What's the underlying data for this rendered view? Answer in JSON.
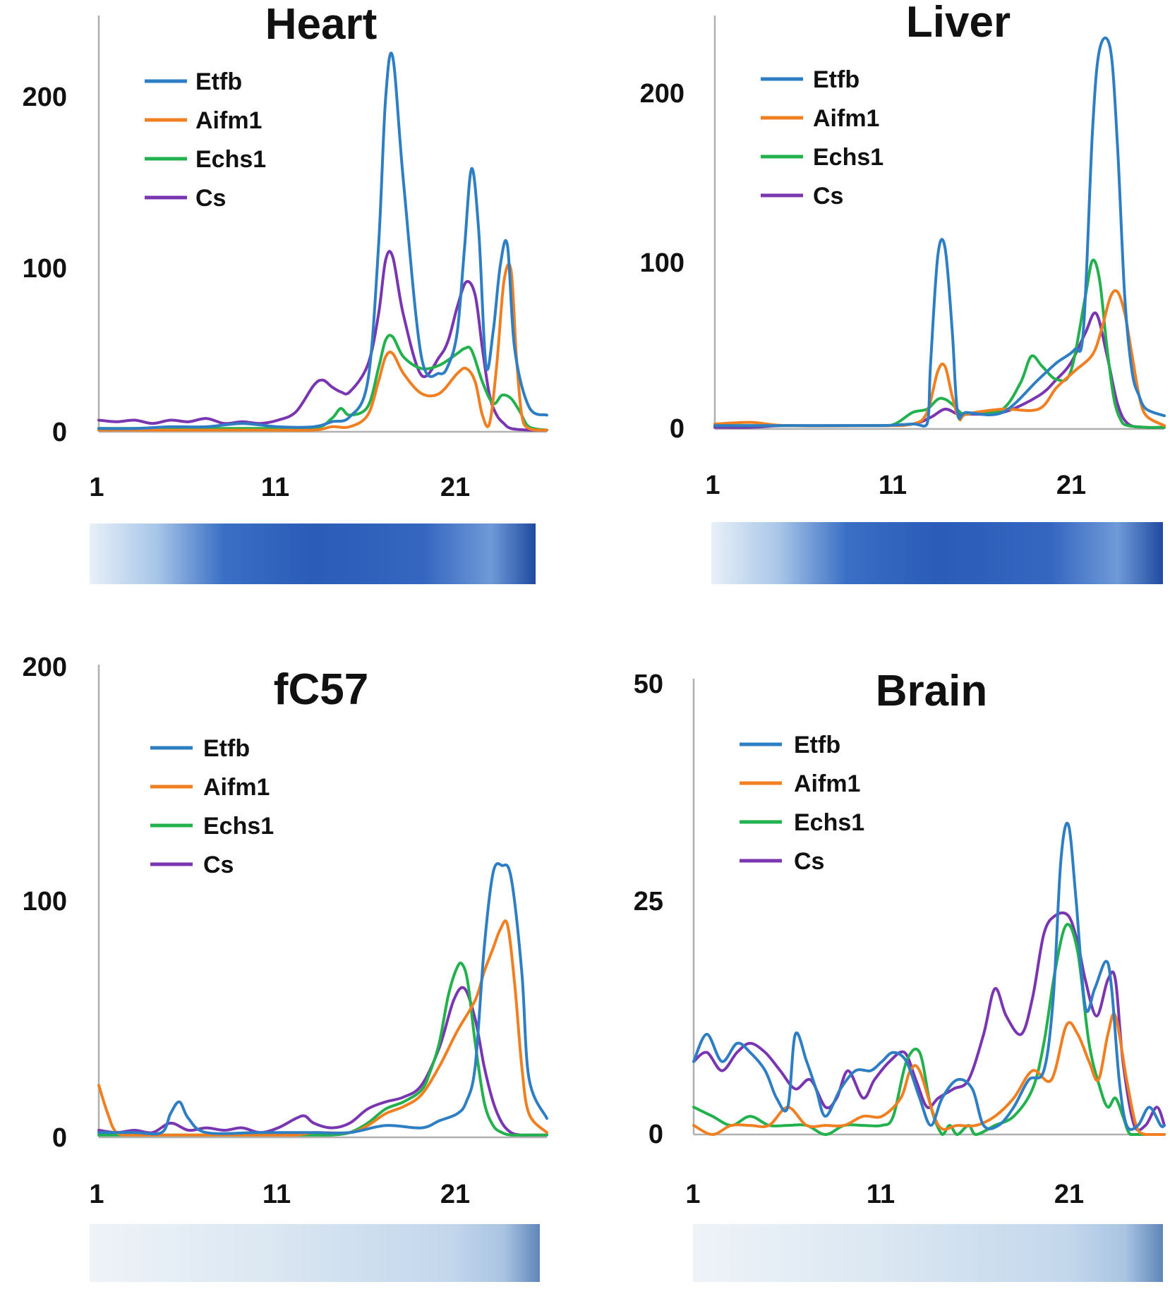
{
  "colors": {
    "Etfb": "#2e7ec4",
    "Aifm1": "#f07f22",
    "Echs1": "#22b14c",
    "Cs": "#7a35b0"
  },
  "chart_data": [
    {
      "type": "line",
      "title": "Heart",
      "ylim": [
        0,
        250
      ],
      "yticks": [
        "0",
        "100",
        "200"
      ],
      "xlim": [
        1,
        26
      ],
      "xticks": [
        "1",
        "11",
        "21"
      ],
      "legend_position": "top-left",
      "gel_intensity": "dark",
      "series": [
        {
          "name": "Etfb",
          "x": [
            1,
            3,
            5,
            7,
            9,
            11,
            13,
            14,
            15,
            16,
            16.6,
            17,
            17.4,
            18,
            19,
            20,
            20.5,
            21,
            21.4,
            21.8,
            22.2,
            22.6,
            23,
            23.4,
            23.8,
            24.2,
            25,
            26
          ],
          "y": [
            2,
            2,
            3,
            3,
            5,
            3,
            3,
            6,
            9,
            30,
            110,
            200,
            225,
            150,
            45,
            35,
            40,
            60,
            110,
            158,
            120,
            40,
            60,
            100,
            112,
            50,
            15,
            10
          ]
        },
        {
          "name": "Aifm1",
          "x": [
            1,
            5,
            10,
            13,
            14,
            15,
            16,
            16.6,
            17,
            17.4,
            18,
            19,
            20,
            21,
            21.5,
            22,
            22.4,
            22.8,
            23.2,
            23.6,
            24,
            24.3,
            24.6,
            25,
            26
          ],
          "y": [
            1,
            1,
            1,
            1,
            3,
            3,
            10,
            30,
            45,
            47,
            35,
            23,
            23,
            35,
            38,
            30,
            10,
            5,
            40,
            90,
            97,
            45,
            10,
            2,
            1
          ]
        },
        {
          "name": "Echs1",
          "x": [
            1,
            5,
            10,
            13,
            14,
            14.5,
            15,
            16,
            16.6,
            17,
            17.4,
            18,
            19,
            20,
            21,
            21.4,
            21.8,
            22.4,
            23,
            23.5,
            24,
            24.5,
            25,
            26
          ],
          "y": [
            2,
            2,
            2,
            2,
            8,
            14,
            10,
            15,
            38,
            55,
            57,
            45,
            38,
            40,
            47,
            50,
            49,
            30,
            17,
            22,
            20,
            12,
            3,
            1
          ]
        },
        {
          "name": "Cs",
          "x": [
            1,
            2,
            3,
            4,
            5,
            6,
            7,
            8,
            9,
            10,
            11,
            12,
            13,
            13.5,
            14,
            14.5,
            15,
            16,
            16.6,
            17,
            17.4,
            18,
            19,
            20,
            20.5,
            21,
            21.5,
            22,
            22.4,
            22.8,
            23.2,
            23.6,
            24,
            25,
            26
          ],
          "y": [
            7,
            6,
            7,
            5,
            7,
            6,
            8,
            5,
            6,
            5,
            7,
            12,
            28,
            31,
            27,
            24,
            24,
            40,
            70,
            103,
            105,
            70,
            34,
            45,
            55,
            75,
            90,
            82,
            50,
            22,
            10,
            5,
            2,
            1,
            1
          ]
        }
      ]
    },
    {
      "type": "line",
      "title": "Liver",
      "ylim": [
        0,
        250
      ],
      "yticks": [
        "0",
        "100",
        "200"
      ],
      "xlim": [
        1,
        26
      ],
      "xticks": [
        "1",
        "11",
        "21"
      ],
      "legend_position": "top-left",
      "gel_intensity": "dark",
      "series": [
        {
          "name": "Etfb",
          "x": [
            1,
            5,
            10,
            12,
            12.8,
            13,
            13.4,
            13.8,
            14.2,
            14.5,
            15,
            17,
            19,
            20,
            21,
            21.5,
            22,
            22.4,
            23,
            23.4,
            23.8,
            24.2,
            24.6,
            25,
            26
          ],
          "y": [
            2,
            2,
            2,
            3,
            3,
            40,
            105,
            110,
            60,
            10,
            10,
            10,
            30,
            40,
            48,
            60,
            180,
            230,
            230,
            170,
            80,
            35,
            20,
            12,
            8
          ]
        },
        {
          "name": "Aifm1",
          "x": [
            1,
            3,
            5,
            10,
            12,
            12.8,
            13.4,
            13.8,
            14.2,
            14.6,
            15,
            17,
            19,
            20,
            21,
            22,
            22.5,
            23,
            23.4,
            23.8,
            24.2,
            24.6,
            25,
            26
          ],
          "y": [
            3,
            4,
            2,
            2,
            3,
            10,
            35,
            38,
            20,
            6,
            9,
            12,
            12,
            25,
            35,
            45,
            60,
            80,
            83,
            70,
            45,
            20,
            8,
            2
          ]
        },
        {
          "name": "Echs1",
          "x": [
            1,
            5,
            10,
            11,
            12,
            12.8,
            13.4,
            13.8,
            14.2,
            14.8,
            15.5,
            17,
            18,
            18.6,
            19.2,
            20,
            20.8,
            21.6,
            22,
            22.4,
            22.8,
            23.2,
            23.6,
            24,
            25,
            26
          ],
          "y": [
            2,
            2,
            2,
            3,
            10,
            12,
            18,
            18,
            15,
            9,
            10,
            12,
            28,
            44,
            38,
            30,
            35,
            80,
            102,
            90,
            50,
            18,
            5,
            2,
            1,
            1
          ]
        },
        {
          "name": "Cs",
          "x": [
            1,
            3,
            5,
            10,
            12,
            13,
            13.8,
            14.5,
            15,
            17,
            19,
            20,
            20.8,
            21.6,
            22.2,
            22.8,
            23.4,
            24,
            25,
            26
          ],
          "y": [
            1,
            1,
            2,
            2,
            3,
            7,
            12,
            9,
            9,
            10,
            20,
            30,
            40,
            58,
            70,
            45,
            15,
            3,
            1,
            1
          ]
        }
      ]
    },
    {
      "type": "line",
      "title": "fC57",
      "ylim": [
        0,
        200
      ],
      "yticks": [
        "0",
        "100",
        "200"
      ],
      "xlim": [
        1,
        26
      ],
      "xticks": [
        "1",
        "11",
        "21"
      ],
      "legend_position": "top-left",
      "gel_intensity": "light",
      "series": [
        {
          "name": "Etfb",
          "x": [
            1,
            3,
            4.5,
            5,
            5.5,
            6,
            7,
            10,
            13,
            15,
            17,
            19,
            20,
            21,
            21.5,
            22,
            22.5,
            23,
            23.5,
            24,
            24.6,
            25,
            26
          ],
          "y": [
            2,
            2,
            2,
            10,
            15,
            8,
            2,
            2,
            2,
            2,
            5,
            4,
            7,
            10,
            15,
            30,
            80,
            112,
            115,
            110,
            70,
            25,
            8
          ]
        },
        {
          "name": "Aifm1",
          "x": [
            1,
            1.5,
            2,
            3,
            5,
            10,
            12,
            13,
            15,
            16,
            17,
            18,
            19,
            20,
            21,
            22,
            22.5,
            23,
            23.4,
            23.8,
            24.2,
            24.6,
            25,
            26
          ],
          "y": [
            22,
            10,
            2,
            1,
            1,
            1,
            1,
            2,
            2,
            5,
            10,
            13,
            18,
            30,
            45,
            58,
            70,
            80,
            88,
            90,
            65,
            30,
            10,
            2
          ]
        },
        {
          "name": "Echs1",
          "x": [
            1,
            5,
            10,
            13,
            14,
            15,
            16,
            17,
            18,
            19,
            19.5,
            20,
            20.5,
            21,
            21.3,
            21.6,
            22,
            22.5,
            23,
            23.5,
            24,
            25,
            26
          ],
          "y": [
            1,
            1,
            1,
            1,
            1,
            2,
            6,
            12,
            15,
            20,
            28,
            40,
            60,
            72,
            73,
            65,
            40,
            15,
            5,
            2,
            1,
            1,
            1
          ]
        },
        {
          "name": "Cs",
          "x": [
            1,
            2,
            3,
            4,
            5,
            6,
            7,
            8,
            9,
            10,
            11,
            12,
            12.5,
            13,
            14,
            15,
            16,
            17,
            18,
            19,
            20,
            20.8,
            21.4,
            22,
            22.5,
            23,
            23.5,
            24,
            24.5,
            25,
            26
          ],
          "y": [
            3,
            2,
            3,
            2,
            6,
            3,
            4,
            3,
            4,
            2,
            4,
            8,
            9,
            6,
            4,
            6,
            12,
            15,
            17,
            22,
            38,
            58,
            63,
            50,
            30,
            15,
            6,
            2,
            1,
            1,
            1
          ]
        }
      ]
    },
    {
      "type": "line",
      "title": "Brain",
      "ylim": [
        0,
        50
      ],
      "yticks": [
        "0",
        "25",
        "50"
      ],
      "xlim": [
        1,
        26
      ],
      "xticks": [
        "1",
        "11",
        "21"
      ],
      "legend_position": "top-left",
      "gel_intensity": "light",
      "series": [
        {
          "name": "Etfb",
          "x": [
            1,
            1.7,
            2.5,
            3.3,
            4,
            4.8,
            5.4,
            6,
            6.4,
            7,
            7.5,
            8,
            8.8,
            9.6,
            10.4,
            11,
            11.6,
            12.3,
            13,
            13.6,
            14.2,
            15,
            15.8,
            16.4,
            17.2,
            18,
            18.8,
            19.6,
            20.1,
            20.5,
            20.9,
            21.3,
            21.8,
            22.3,
            22.9,
            23.2,
            23.6,
            24,
            24.6,
            25.2,
            25.8,
            26
          ],
          "y": [
            8,
            11,
            8,
            10,
            9,
            7,
            4,
            3,
            11,
            8,
            5,
            2,
            5,
            7,
            7,
            8,
            9,
            8,
            4,
            1,
            4,
            6,
            5,
            1,
            1,
            3,
            6,
            7,
            15,
            30,
            34,
            26,
            14,
            16,
            19,
            16,
            6,
            1,
            1,
            3,
            1,
            1
          ]
        },
        {
          "name": "Aifm1",
          "x": [
            1,
            2,
            3,
            4,
            5,
            6,
            7,
            8,
            9,
            10,
            11,
            12,
            12.5,
            13,
            14,
            15,
            16,
            17,
            18,
            19,
            20,
            20.8,
            21.4,
            22,
            22.5,
            23,
            23.4,
            24,
            24.5,
            25,
            26
          ],
          "y": [
            1,
            0,
            1,
            1,
            1,
            3,
            1,
            1,
            1,
            2,
            2,
            4,
            7,
            7,
            1,
            1,
            1,
            2,
            4,
            7,
            6,
            12,
            11,
            8,
            6,
            11,
            13,
            6,
            1,
            0,
            0
          ]
        },
        {
          "name": "Echs1",
          "x": [
            1,
            2,
            3,
            4,
            5,
            6,
            7,
            8,
            9,
            10,
            11,
            11.6,
            12.3,
            13,
            13.6,
            14.2,
            14.6,
            15,
            15.6,
            16,
            17,
            18,
            19,
            19.6,
            20.2,
            20.8,
            21.4,
            22,
            22.6,
            23,
            23.4,
            23.8,
            24.2,
            25,
            26
          ],
          "y": [
            3,
            2,
            1,
            2,
            1,
            1,
            1,
            0,
            1,
            1,
            1,
            2,
            8,
            9,
            3,
            0,
            1,
            0,
            1,
            0,
            1,
            2,
            5,
            10,
            18,
            23,
            20,
            10,
            5,
            3,
            4,
            2,
            0,
            0,
            0
          ]
        },
        {
          "name": "Cs",
          "x": [
            1,
            1.7,
            2.5,
            3.3,
            4,
            4.8,
            5.6,
            6.4,
            7.2,
            8,
            8.6,
            9.2,
            10,
            10.6,
            11.4,
            12.2,
            12.8,
            13.4,
            14,
            14.8,
            15.6,
            16.4,
            17,
            17.6,
            18.4,
            19,
            19.6,
            20.2,
            20.9,
            21.4,
            21.8,
            22.4,
            23,
            23.4,
            23.8,
            24.4,
            25,
            25.6,
            26
          ],
          "y": [
            8,
            9,
            7,
            9,
            10,
            9,
            7,
            5,
            6,
            3,
            4,
            7,
            4,
            6,
            8,
            9,
            6,
            3,
            4,
            5,
            6,
            11,
            16,
            13,
            11,
            15,
            22,
            24,
            24,
            21,
            17,
            13,
            17,
            17,
            8,
            1,
            1,
            3,
            1
          ]
        }
      ]
    }
  ]
}
